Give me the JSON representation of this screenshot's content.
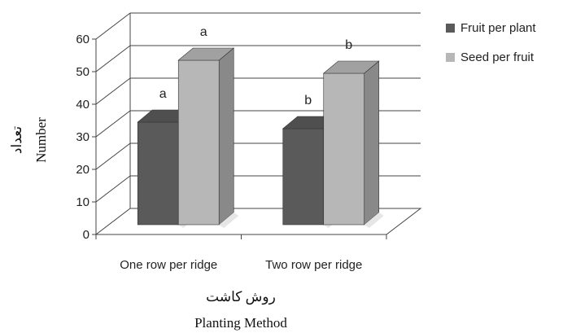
{
  "chart_data": {
    "type": "bar",
    "categories": [
      "One row per ridge",
      "Two row per ridge"
    ],
    "series": [
      {
        "name": "Fruit per plant",
        "values": [
          31.5,
          29.5
        ],
        "labels": [
          "a",
          "b"
        ],
        "color": "#5a5a5a"
      },
      {
        "name": "Seed per fruit",
        "values": [
          50.5,
          46.5
        ],
        "labels": [
          "a",
          "b"
        ],
        "color": "#b7b7b7"
      }
    ],
    "ylim": [
      0,
      60
    ],
    "yticks": [
      0,
      10,
      20,
      30,
      40,
      50,
      60
    ],
    "ylabel": "Number",
    "ylabel_fa": "تعداد",
    "xlabel": "Planting Method",
    "xlabel_fa": "روش کاشت",
    "grid": true,
    "legend_position": "right",
    "style": "3d-column"
  }
}
